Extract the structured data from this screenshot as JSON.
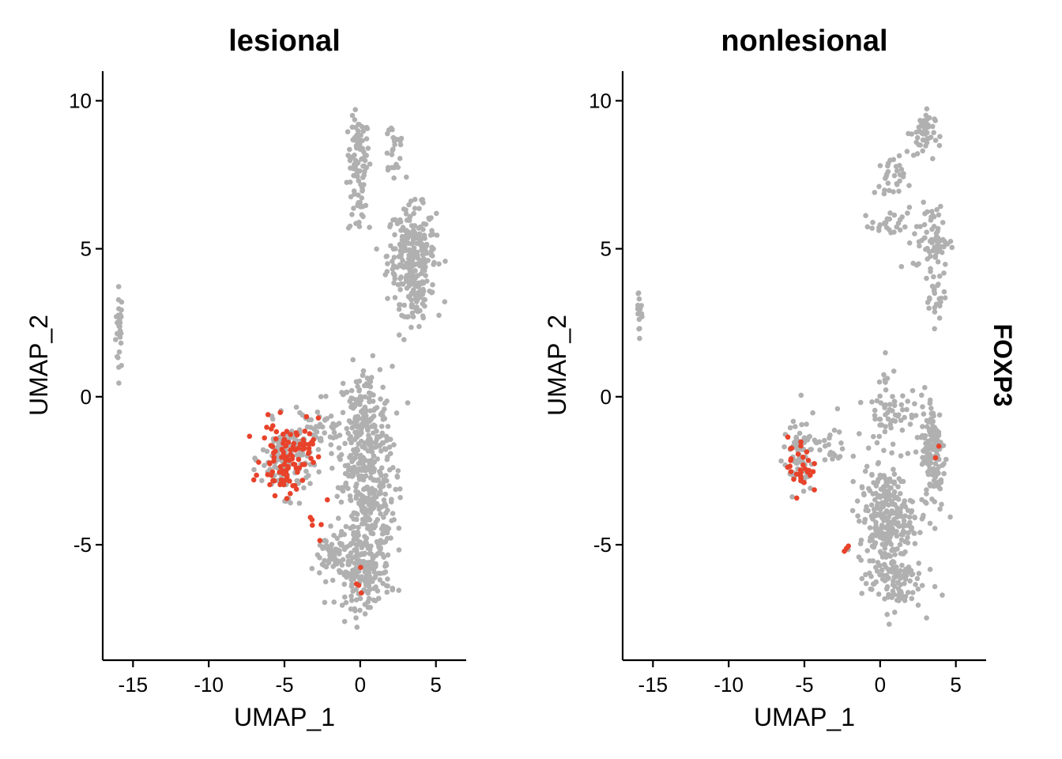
{
  "chart_data": [
    {
      "type": "scatter",
      "title": "lesional",
      "xlabel": "UMAP_1",
      "ylabel": "UMAP_2",
      "xlim": [
        -17,
        7
      ],
      "ylim": [
        -8.9,
        11
      ],
      "xticks": [
        -15,
        -10,
        -5,
        0,
        5
      ],
      "yticks": [
        -5,
        0,
        5,
        10
      ],
      "grid": false,
      "base_color": "#b0b0b0",
      "expressing_color": "#e8422a",
      "clusters": [
        {
          "cx": -15.9,
          "cy": 2.3,
          "sx": 0.12,
          "sy": 0.7,
          "n": 30
        },
        {
          "cx": -0.1,
          "cy": 8.2,
          "sx": 0.35,
          "sy": 0.6,
          "n": 70
        },
        {
          "cx": -0.2,
          "cy": 6.6,
          "sx": 0.3,
          "sy": 0.6,
          "n": 30
        },
        {
          "cx": 2.2,
          "cy": 8.4,
          "sx": 0.4,
          "sy": 0.6,
          "n": 25
        },
        {
          "cx": 3.4,
          "cy": 4.8,
          "sx": 0.8,
          "sy": 0.8,
          "n": 260
        },
        {
          "cx": 3.8,
          "cy": 3.2,
          "sx": 0.4,
          "sy": 0.5,
          "n": 50
        },
        {
          "cx": 0.3,
          "cy": -1.0,
          "sx": 0.9,
          "sy": 1.0,
          "n": 220
        },
        {
          "cx": 0.5,
          "cy": -3.5,
          "sx": 0.9,
          "sy": 1.0,
          "n": 240
        },
        {
          "cx": 0.2,
          "cy": -5.9,
          "sx": 0.9,
          "sy": 0.6,
          "n": 200
        },
        {
          "cx": -2.4,
          "cy": -1.2,
          "sx": 0.8,
          "sy": 0.5,
          "n": 40
        },
        {
          "cx": -4.9,
          "cy": -2.1,
          "sx": 0.8,
          "sy": 0.6,
          "n": 130
        },
        {
          "cx": -2.1,
          "cy": -5.4,
          "sx": 0.5,
          "sy": 0.4,
          "n": 45
        }
      ],
      "expressing_cells": [
        {
          "cx": -4.9,
          "cy": -2.1,
          "sx": 0.8,
          "sy": 0.6,
          "n": 95
        },
        {
          "cx": -3.5,
          "cy": -1.3,
          "sx": 0.4,
          "sy": 0.4,
          "n": 12
        },
        {
          "cx": -2.8,
          "cy": -4.2,
          "sx": 0.3,
          "sy": 0.6,
          "n": 6
        },
        {
          "cx": 0.0,
          "cy": -5.8,
          "sx": 0.3,
          "sy": 0.6,
          "n": 4
        }
      ]
    },
    {
      "type": "scatter",
      "title": "nonlesional",
      "xlabel": "UMAP_1",
      "ylabel": "UMAP_2",
      "xlim": [
        -17,
        7
      ],
      "ylim": [
        -8.9,
        11
      ],
      "xticks": [
        -15,
        -10,
        -5,
        0,
        5
      ],
      "yticks": [
        -5,
        0,
        5,
        10
      ],
      "grid": false,
      "base_color": "#b0b0b0",
      "expressing_color": "#e8422a",
      "clusters": [
        {
          "cx": -15.9,
          "cy": 2.9,
          "sx": 0.12,
          "sy": 0.4,
          "n": 18
        },
        {
          "cx": 2.8,
          "cy": 8.9,
          "sx": 0.4,
          "sy": 0.4,
          "n": 50
        },
        {
          "cx": 0.6,
          "cy": 7.3,
          "sx": 0.5,
          "sy": 0.4,
          "n": 30
        },
        {
          "cx": 0.6,
          "cy": 5.8,
          "sx": 0.6,
          "sy": 0.2,
          "n": 25
        },
        {
          "cx": 3.4,
          "cy": 5.3,
          "sx": 0.6,
          "sy": 0.6,
          "n": 70
        },
        {
          "cx": 3.7,
          "cy": 3.5,
          "sx": 0.3,
          "sy": 0.5,
          "n": 25
        },
        {
          "cx": 3.5,
          "cy": -1.9,
          "sx": 0.4,
          "sy": 1.0,
          "n": 140
        },
        {
          "cx": 0.8,
          "cy": -0.5,
          "sx": 0.9,
          "sy": 0.8,
          "n": 70
        },
        {
          "cx": 0.4,
          "cy": -4.1,
          "sx": 0.9,
          "sy": 0.8,
          "n": 260
        },
        {
          "cx": 0.8,
          "cy": -6.2,
          "sx": 1.0,
          "sy": 0.5,
          "n": 100
        },
        {
          "cx": -5.4,
          "cy": -2.1,
          "sx": 0.5,
          "sy": 0.6,
          "n": 70
        },
        {
          "cx": -3.2,
          "cy": -1.6,
          "sx": 0.6,
          "sy": 0.5,
          "n": 25
        }
      ],
      "expressing_cells": [
        {
          "cx": -5.3,
          "cy": -2.3,
          "sx": 0.4,
          "sy": 0.5,
          "n": 32
        },
        {
          "cx": -2.3,
          "cy": -5.2,
          "sx": 0.2,
          "sy": 0.5,
          "n": 3
        },
        {
          "cx": 3.8,
          "cy": -1.5,
          "sx": 0.1,
          "sy": 0.5,
          "n": 2
        }
      ]
    }
  ],
  "strip": {
    "label": "FOXP3"
  }
}
